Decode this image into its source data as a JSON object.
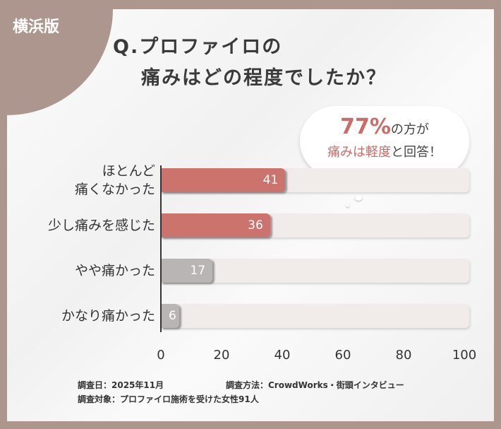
{
  "badge": "横浜版",
  "title": {
    "line1": "Q.プロファイロの",
    "line2": "痛みはどの程度でしたか？"
  },
  "bubble": {
    "pct": "77%",
    "l1_rest": "の方が",
    "l2_red": "痛みは軽度",
    "l2_rest": "と回答！"
  },
  "colors": {
    "highlight": "#cd736e",
    "neutral": "#b9b5b4",
    "track": "#f1ebea",
    "frame": "#ad968e"
  },
  "chart_data": {
    "type": "bar",
    "orientation": "horizontal",
    "categories": [
      "ほとんど\n痛くなかった",
      "少し痛みを感じた",
      "やや痛かった",
      "かなり痛かった"
    ],
    "values": [
      41,
      36,
      17,
      6
    ],
    "xlim": [
      0,
      100
    ],
    "ticks": [
      "0",
      "20",
      "40",
      "60",
      "80",
      "100"
    ],
    "bar_colors": [
      "#cd736e",
      "#cd736e",
      "#b9b5b4",
      "#b9b5b4"
    ]
  },
  "footer": {
    "date": "調査日：2025年11月",
    "method": "調査方法：CrowdWorks・街頭インタビュー",
    "target": "調査対象：プロファイロ施術を受けた女性91人"
  }
}
